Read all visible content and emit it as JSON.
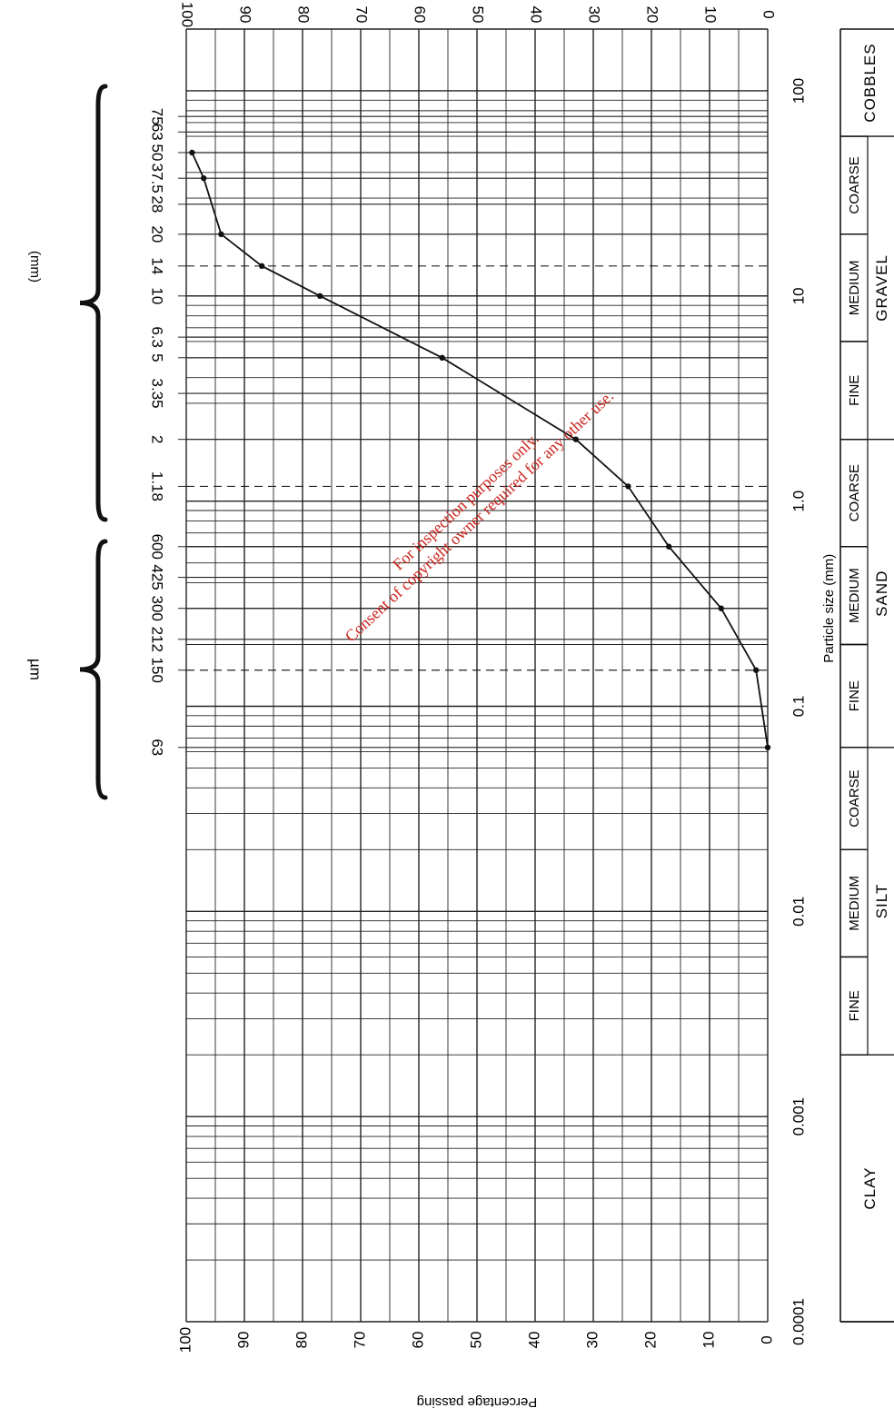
{
  "chart_data": {
    "type": "line",
    "title": "",
    "xlabel": "Particle size (mm)",
    "ylabel": "Percentage passing",
    "x_scale": "log",
    "xlim": [
      0.0001,
      200
    ],
    "ylim": [
      0,
      100
    ],
    "grid": true,
    "x_tick_labels": [
      "0.0001",
      "0.001",
      "0.01",
      "0.1",
      "1.0",
      "10",
      "100"
    ],
    "x_tick_values": [
      0.0001,
      0.001,
      0.01,
      0.1,
      1,
      10,
      100
    ],
    "y_tick_labels": [
      "0",
      "10",
      "20",
      "30",
      "40",
      "50",
      "60",
      "70",
      "80",
      "90",
      "100"
    ],
    "y_tick_values": [
      0,
      10,
      20,
      30,
      40,
      50,
      60,
      70,
      80,
      90,
      100
    ],
    "sieve_labels": {
      "mm_group_label": "(mm)",
      "um_group_label": "µm",
      "mm": [
        {
          "label": "75",
          "x": 75
        },
        {
          "label": "63",
          "x": 63
        },
        {
          "label": "50",
          "x": 50
        },
        {
          "label": "37.5",
          "x": 37.5
        },
        {
          "label": "28",
          "x": 28
        },
        {
          "label": "20",
          "x": 20
        },
        {
          "label": "14",
          "x": 14
        },
        {
          "label": "10",
          "x": 10
        },
        {
          "label": "6.3",
          "x": 6.3
        },
        {
          "label": "5",
          "x": 5
        },
        {
          "label": "3.35",
          "x": 3.35
        },
        {
          "label": "2",
          "x": 2
        },
        {
          "label": "1.18",
          "x": 1.18
        }
      ],
      "um": [
        {
          "label": "600",
          "x": 0.6
        },
        {
          "label": "425",
          "x": 0.425
        },
        {
          "label": "300",
          "x": 0.3
        },
        {
          "label": "212",
          "x": 0.212
        },
        {
          "label": "150",
          "x": 0.15
        },
        {
          "label": "63",
          "x": 0.063
        }
      ]
    },
    "dashed_lines_x": [
      14,
      1.18,
      0.15
    ],
    "classification": {
      "sub": [
        {
          "label": "FINE",
          "from": 0.063,
          "to": 0.2
        },
        {
          "label": "MEDIUM",
          "from": 0.2,
          "to": 0.6
        },
        {
          "label": "COARSE",
          "from": 0.6,
          "to": 2
        },
        {
          "label": "FINE",
          "from": 2,
          "to": 6
        },
        {
          "label": "MEDIUM",
          "from": 6,
          "to": 20
        },
        {
          "label": "COARSE",
          "from": 20,
          "to": 60
        },
        {
          "label": "FINE",
          "from": 0.002,
          "to": 0.006
        },
        {
          "label": "MEDIUM",
          "from": 0.006,
          "to": 0.02
        },
        {
          "label": "COARSE",
          "from": 0.02,
          "to": 0.063
        }
      ],
      "main": [
        {
          "label": "CLAY",
          "from": 0.0001,
          "to": 0.002
        },
        {
          "label": "SILT",
          "from": 0.002,
          "to": 0.063
        },
        {
          "label": "SAND",
          "from": 0.063,
          "to": 2
        },
        {
          "label": "GRAVEL",
          "from": 2,
          "to": 60
        },
        {
          "label": "COBBLES",
          "from": 60,
          "to": 200
        }
      ]
    },
    "series": [
      {
        "x": [
          50,
          37.5,
          20,
          14,
          10,
          5,
          2,
          1.18,
          0.6,
          0.3,
          0.15,
          0.063
        ],
        "y": [
          99,
          97,
          94,
          87,
          77,
          56,
          33,
          24,
          17,
          8,
          2,
          0
        ]
      }
    ],
    "watermark": [
      "For inspection purposes only.",
      "Consent of copyright owner required for any other use."
    ]
  }
}
